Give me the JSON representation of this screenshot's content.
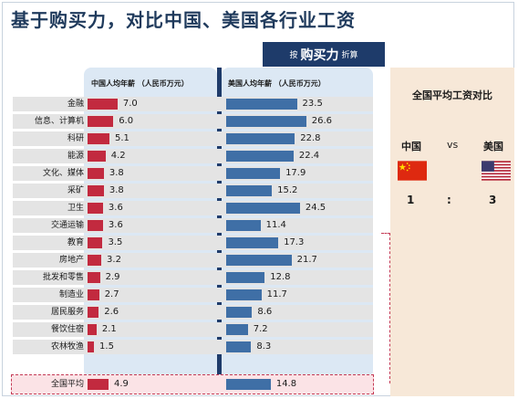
{
  "title": "基于购买力，对比中国、美国各行业工资",
  "ppp_banner": {
    "prefix": "按",
    "main": "购买力",
    "suffix": "折算"
  },
  "china_header": "中国人均年薪 （人民币万元）",
  "us_header": "美国人均年薪 （人民币万元）",
  "right_panel": {
    "title": "全国平均工资对比",
    "china_label": "中国",
    "vs_label": "vs",
    "us_label": "美国",
    "china_ratio": "1",
    "colon": ":",
    "us_ratio": "3"
  },
  "colors": {
    "china_bar": "#c22a3f",
    "us_bar": "#3f6fa6",
    "banner": "#1e3b6a"
  },
  "chart_data": {
    "type": "bar",
    "orientation": "horizontal",
    "categories": [
      "金融",
      "信息、计算机",
      "科研",
      "能源",
      "文化、媒体",
      "采矿",
      "卫生",
      "交通运输",
      "教育",
      "房地产",
      "批发和零售",
      "制造业",
      "居民服务",
      "餐饮住宿",
      "农林牧渔",
      "全国平均"
    ],
    "series": [
      {
        "name": "中国人均年薪 （人民币万元）",
        "values": [
          7.0,
          6.0,
          5.1,
          4.2,
          3.8,
          3.8,
          3.6,
          3.6,
          3.5,
          3.2,
          2.9,
          2.7,
          2.6,
          2.1,
          1.5,
          4.9
        ]
      },
      {
        "name": "美国人均年薪 （人民币万元）",
        "values": [
          23.5,
          26.6,
          22.8,
          22.4,
          17.9,
          15.2,
          24.5,
          11.4,
          17.3,
          21.7,
          12.8,
          11.7,
          8.6,
          7.2,
          8.3,
          14.8
        ]
      }
    ],
    "value_labels": {
      "china": [
        "7.0",
        "6.0",
        "5.1",
        "4.2",
        "3.8",
        "3.8",
        "3.6",
        "3.6",
        "3.5",
        "3.2",
        "2.9",
        "2.7",
        "2.6",
        "2.1",
        "1.5",
        "4.9"
      ],
      "us": [
        "23.5",
        "26.6",
        "22.8",
        "22.4",
        "17.9",
        "15.2",
        "24.5",
        "11.4",
        "17.3",
        "21.7",
        "12.8",
        "11.7",
        "8.6",
        "7.2",
        "8.3",
        "14.8"
      ]
    }
  }
}
